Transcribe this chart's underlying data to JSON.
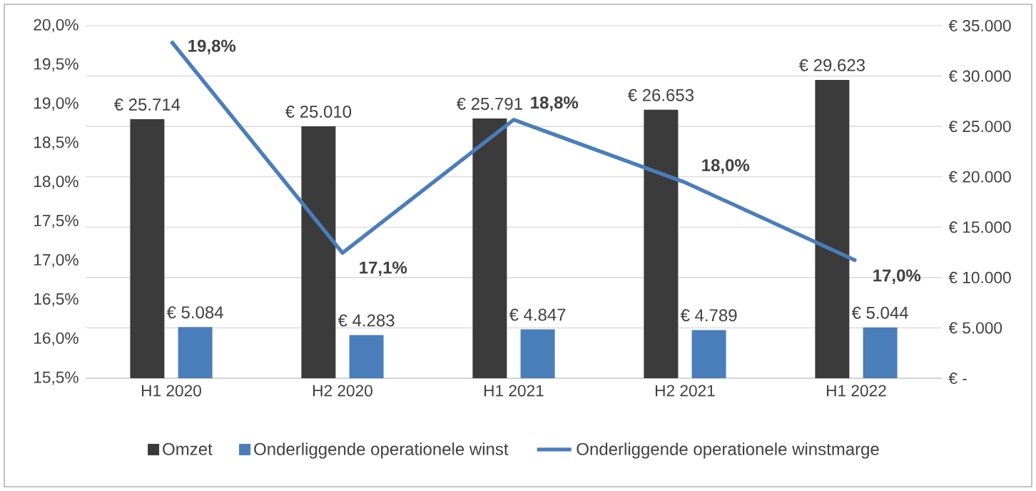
{
  "chart_data": {
    "type": "bar",
    "categories": [
      "H1 2020",
      "H2 2020",
      "H1 2021",
      "H2 2021",
      "H1 2022"
    ],
    "series": [
      {
        "name": "Omzet",
        "color": "#3b3b3b",
        "axis": "y2",
        "values": [
          25714,
          25010,
          25791,
          26653,
          29623
        ],
        "value_labels": [
          "€ 25.714",
          "€ 25.010",
          "€ 25.791",
          "€ 26.653",
          "€ 29.623"
        ]
      },
      {
        "name": "Onderliggende operationele winst",
        "color": "#4a7ebb",
        "axis": "y2",
        "values": [
          5084,
          4283,
          4847,
          4789,
          5044
        ],
        "value_labels": [
          "€ 5.084",
          "€ 4.283",
          "€ 4.847",
          "€ 4.789",
          "€ 5.044"
        ]
      },
      {
        "name": "Onderliggende operationele winstmarge",
        "type": "line",
        "color": "#4a7ebb",
        "values": [
          19.8,
          17.1,
          18.8,
          18.0,
          17.0
        ],
        "value_labels": [
          "19,8%",
          "17,1%",
          "18,8%",
          "18,0%",
          "17,0%"
        ]
      }
    ],
    "ylim": [
      15.5,
      20.0
    ],
    "yticks": [
      {
        "value": 15.5,
        "label": "15,5%"
      },
      {
        "value": 16.0,
        "label": "16,0%"
      },
      {
        "value": 16.5,
        "label": "16,5%"
      },
      {
        "value": 17.0,
        "label": "17,0%"
      },
      {
        "value": 17.5,
        "label": "17,5%"
      },
      {
        "value": 18.0,
        "label": "18,0%"
      },
      {
        "value": 18.5,
        "label": "18,5%"
      },
      {
        "value": 19.0,
        "label": "19,0%"
      },
      {
        "value": 19.5,
        "label": "19,5%"
      },
      {
        "value": 20.0,
        "label": "20,0%"
      }
    ],
    "y2lim": [
      0,
      35000
    ],
    "y2ticks": [
      {
        "value": 0,
        "label": "€ -"
      },
      {
        "value": 5000,
        "label": "€ 5.000"
      },
      {
        "value": 10000,
        "label": "€ 10.000"
      },
      {
        "value": 15000,
        "label": "€ 15.000"
      },
      {
        "value": 20000,
        "label": "€ 20.000"
      },
      {
        "value": 25000,
        "label": "€ 25.000"
      },
      {
        "value": 30000,
        "label": "€ 30.000"
      },
      {
        "value": 35000,
        "label": "€ 35.000"
      }
    ],
    "grid": "y",
    "legend": "bottom"
  }
}
